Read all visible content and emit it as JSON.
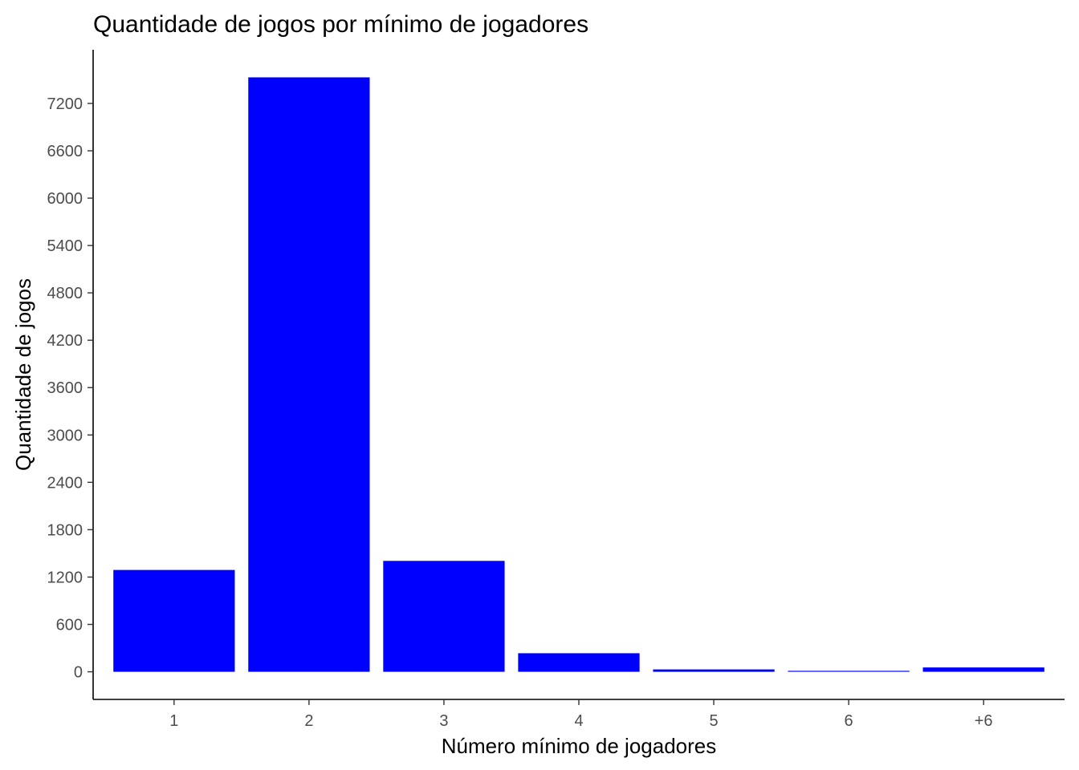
{
  "chart_data": {
    "type": "bar",
    "title": "Quantidade de jogos por mínimo de jogadores",
    "xlabel": "Número mínimo de jogadores",
    "ylabel": "Quantidade de jogos",
    "categories": [
      "1",
      "2",
      "3",
      "4",
      "5",
      "6",
      "+6"
    ],
    "values": [
      1290,
      7530,
      1405,
      235,
      30,
      12,
      55
    ],
    "ylim": [
      -350,
      7880
    ],
    "yticks": [
      0,
      600,
      1200,
      1800,
      2400,
      3000,
      3600,
      4200,
      4800,
      5400,
      6000,
      6600,
      7200
    ],
    "grid": false,
    "legend": "none",
    "bar_color": "#0000ff"
  }
}
